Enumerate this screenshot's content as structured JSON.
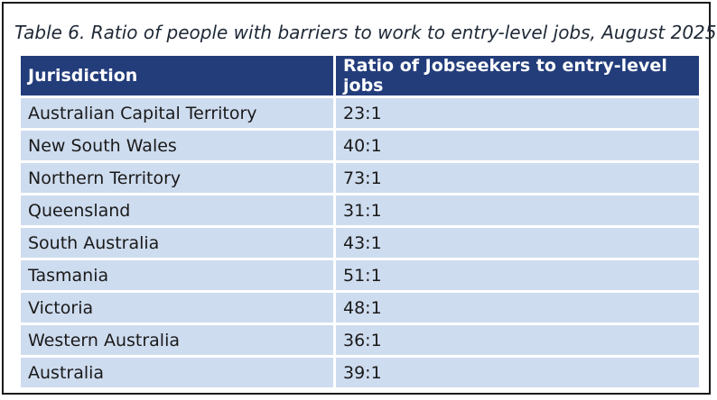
{
  "caption": "Table 6. Ratio of people with barriers to work to entry-level jobs, August 2025",
  "columns": [
    "Jurisdiction",
    "Ratio of Jobseekers to entry-level jobs"
  ],
  "rows": [
    {
      "jurisdiction": "Australian Capital Territory",
      "ratio": "23:1"
    },
    {
      "jurisdiction": "New South Wales",
      "ratio": "40:1"
    },
    {
      "jurisdiction": "Northern Territory",
      "ratio": "73:1"
    },
    {
      "jurisdiction": "Queensland",
      "ratio": "31:1"
    },
    {
      "jurisdiction": "South Australia",
      "ratio": "43:1"
    },
    {
      "jurisdiction": "Tasmania",
      "ratio": "51:1"
    },
    {
      "jurisdiction": "Victoria",
      "ratio": "48:1"
    },
    {
      "jurisdiction": "Western Australia",
      "ratio": "36:1"
    },
    {
      "jurisdiction": "Australia",
      "ratio": "39:1"
    }
  ]
}
